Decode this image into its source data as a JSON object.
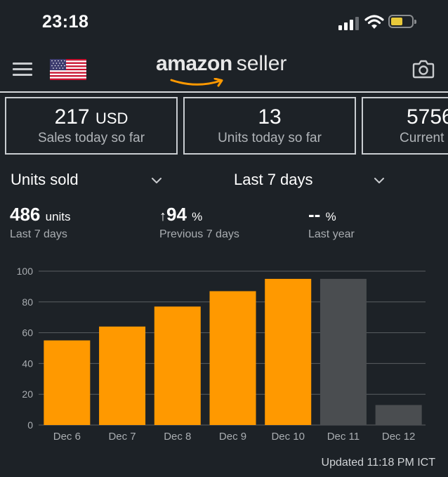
{
  "status_bar": {
    "time": "23:18",
    "signal_icon": "cellular-signal-icon",
    "wifi_icon": "wifi-icon",
    "battery_icon": "battery-icon",
    "battery_color": "#e8c93a"
  },
  "header": {
    "menu_icon": "hamburger-menu-icon",
    "flag_icon": "us-flag-icon",
    "logo_word": "amazon",
    "logo_suffix": "seller",
    "camera_icon": "camera-icon"
  },
  "cards": [
    {
      "value": "217",
      "unit": "USD",
      "label": "Sales today so far"
    },
    {
      "value": "13",
      "unit": "",
      "label": "Units today so far"
    },
    {
      "value": "5756",
      "unit": "",
      "label": "Current"
    }
  ],
  "selectors": {
    "metric": "Units sold",
    "range": "Last 7 days"
  },
  "stats": [
    {
      "value": "486",
      "unit": "units",
      "label": "Last 7 days"
    },
    {
      "arrow": "↑",
      "value": "94",
      "unit": "%",
      "label": "Previous 7 days"
    },
    {
      "value": "--",
      "unit": "%",
      "label": "Last year"
    }
  ],
  "chart_data": {
    "type": "bar",
    "categories": [
      "Dec 6",
      "Dec 7",
      "Dec 8",
      "Dec 9",
      "Dec 10",
      "Dec 11",
      "Dec 12"
    ],
    "values": [
      55,
      64,
      77,
      87,
      95,
      95,
      13
    ],
    "highlight": [
      true,
      true,
      true,
      true,
      true,
      false,
      false
    ],
    "colors": {
      "primary": "#ff9900",
      "muted": "#4a4d50"
    },
    "yticks": [
      0,
      20,
      40,
      60,
      80,
      100
    ],
    "ylim": [
      0,
      100
    ],
    "grid": true,
    "title": "",
    "xlabel": "",
    "ylabel": ""
  },
  "footer": {
    "updated": "Updated 11:18 PM ICT"
  },
  "colors": {
    "background": "#1d2227",
    "accent": "#ff9900",
    "positive": "#4caf50"
  }
}
